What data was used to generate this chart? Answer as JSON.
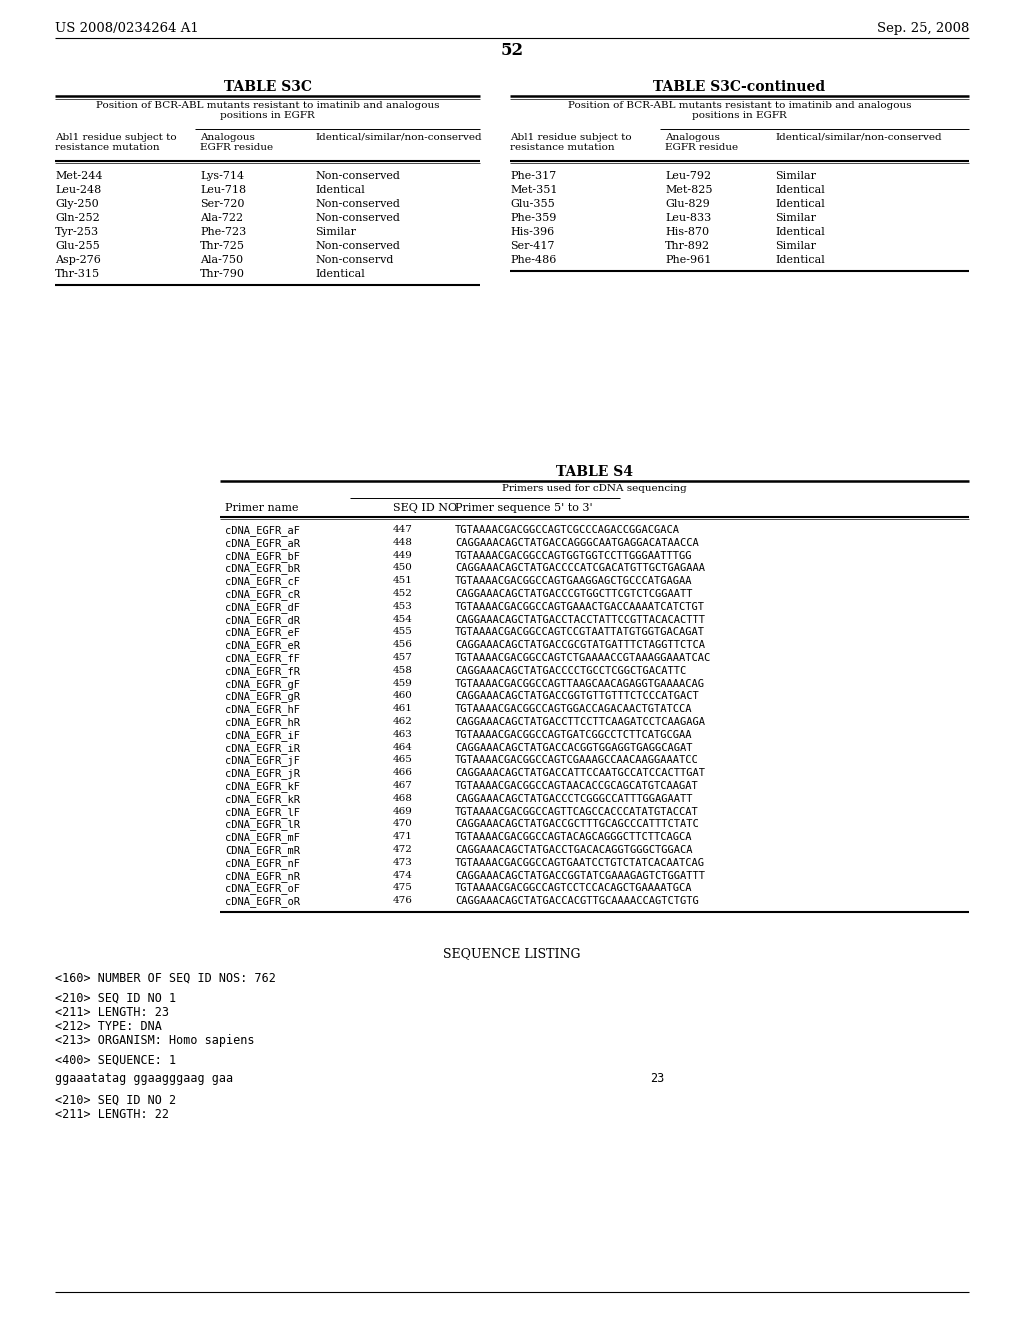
{
  "header_left": "US 2008/0234264 A1",
  "header_right": "Sep. 25, 2008",
  "page_number": "52",
  "table_s3c_title": "TABLE S3C",
  "table_s3c_subtitle": "Position of BCR-ABL mutants resistant to imatinib and analogous\npositions in EGFR",
  "table_s3c_col1_header": "Abl1 residue subject to\nresistance mutation",
  "table_s3c_col2_header": "Analogous\nEGFR residue",
  "table_s3c_col3_header": "Identical/similar/non-conserved",
  "table_s3c_data": [
    [
      "Met-244",
      "Lys-714",
      "Non-conserved"
    ],
    [
      "Leu-248",
      "Leu-718",
      "Identical"
    ],
    [
      "Gly-250",
      "Ser-720",
      "Non-conserved"
    ],
    [
      "Gln-252",
      "Ala-722",
      "Non-conserved"
    ],
    [
      "Tyr-253",
      "Phe-723",
      "Similar"
    ],
    [
      "Glu-255",
      "Thr-725",
      "Non-conserved"
    ],
    [
      "Asp-276",
      "Ala-750",
      "Non-conservd"
    ],
    [
      "Thr-315",
      "Thr-790",
      "Identical"
    ]
  ],
  "table_s3c_cont_title": "TABLE S3C-continued",
  "table_s3c_cont_subtitle": "Position of BCR-ABL mutants resistant to imatinib and analogous\npositions in EGFR",
  "table_s3c_cont_col1_header": "Abl1 residue subject to\nresistance mutation",
  "table_s3c_cont_col2_header": "Analogous\nEGFR residue",
  "table_s3c_cont_col3_header": "Identical/similar/non-conserved",
  "table_s3c_cont_data": [
    [
      "Phe-317",
      "Leu-792",
      "Similar"
    ],
    [
      "Met-351",
      "Met-825",
      "Identical"
    ],
    [
      "Glu-355",
      "Glu-829",
      "Identical"
    ],
    [
      "Phe-359",
      "Leu-833",
      "Similar"
    ],
    [
      "His-396",
      "His-870",
      "Identical"
    ],
    [
      "Ser-417",
      "Thr-892",
      "Similar"
    ],
    [
      "Phe-486",
      "Phe-961",
      "Identical"
    ]
  ],
  "table_s4_title": "TABLE S4",
  "table_s4_subtitle": "Primers used for cDNA sequencing",
  "table_s4_col1_header": "Primer name",
  "table_s4_col2_header": "SEQ ID NO",
  "table_s4_col3_header": "Primer sequence 5' to 3'",
  "table_s4_data": [
    [
      "cDNA_EGFR_aF",
      "447",
      "TGTAAAACGACGGCCAGTCGCCCAGACCGGACGACA"
    ],
    [
      "cDNA_EGFR_aR",
      "448",
      "CAGGAAACAGCTATGACCAGGGCAATGAGGACATAACCA"
    ],
    [
      "cDNA_EGFR_bF",
      "449",
      "TGTAAAACGACGGCCAGTGGTGGTCCTTGGGAATTTGG"
    ],
    [
      "cDNA_EGFR_bR",
      "450",
      "CAGGAAACAGCTATGACCCCATCGACATGTTGCTGAGAAA"
    ],
    [
      "cDNA_EGFR_cF",
      "451",
      "TGTAAAACGACGGCCAGTGAAGGAGCTGCCCATGAGAA"
    ],
    [
      "cDNA_EGFR_cR",
      "452",
      "CAGGAAACAGCTATGACCCGTGGCTTCGTCTCGGAATT"
    ],
    [
      "cDNA_EGFR_dF",
      "453",
      "TGTAAAACGACGGCCAGTGAAACTGACCAAAATCATCTGT"
    ],
    [
      "cDNA_EGFR_dR",
      "454",
      "CAGGAAACAGCTATGACCTACCTATTCCGTTACACACTTT"
    ],
    [
      "cDNA_EGFR_eF",
      "455",
      "TGTAAAACGACGGCCAGTCCGTAATTATGTGGTGACAGAT"
    ],
    [
      "cDNA_EGFR_eR",
      "456",
      "CAGGAAACAGCTATGACCGCGTATGATTTCTAGGTTCTCA"
    ],
    [
      "cDNA_EGFR_fF",
      "457",
      "TGTAAAACGACGGCCAGTCTGAAAACCGTAAAGGAAATCAC"
    ],
    [
      "cDNA_EGFR_fR",
      "458",
      "CAGGAAACAGCTATGACCCCTGCCTCGGCTGACATTC"
    ],
    [
      "cDNA_EGFR_gF",
      "459",
      "TGTAAAACGACGGCCAGTTAAGCAACAGAGGTGAAAACAG"
    ],
    [
      "cDNA_EGFR_gR",
      "460",
      "CAGGAAACAGCTATGACCGGTGTTGTTTCTCCCATGACT"
    ],
    [
      "cDNA_EGFR_hF",
      "461",
      "TGTAAAACGACGGCCAGTGGACCAGACAACTGTATCCA"
    ],
    [
      "cDNA_EGFR_hR",
      "462",
      "CAGGAAACAGCTATGACCTTCCTTCAAGATCCTCAAGAGA"
    ],
    [
      "cDNA_EGFR_iF",
      "463",
      "TGTAAAACGACGGCCAGTGATCGGCCTCTTCATGCGAA"
    ],
    [
      "cDNA_EGFR_iR",
      "464",
      "CAGGAAACAGCTATGACCACGGTGGAGGTGAGGCAGAT"
    ],
    [
      "cDNA_EGFR_jF",
      "465",
      "TGTAAAACGACGGCCAGTCGAAAGCCAACAAGGAAATCC"
    ],
    [
      "cDNA_EGFR_jR",
      "466",
      "CAGGAAACAGCTATGACCATTCCAATGCCATCCACTTGAT"
    ],
    [
      "cDNA_EGFR_kF",
      "467",
      "TGTAAAACGACGGCCAGTAACACCGCAGCATGTCAAGAT"
    ],
    [
      "cDNA_EGFR_kR",
      "468",
      "CAGGAAACAGCTATGACCCTCGGGCCATTTGGAGAATT"
    ],
    [
      "cDNA_EGFR_lF",
      "469",
      "TGTAAAACGACGGCCAGTTCAGCCACCCATATGTACCAT"
    ],
    [
      "cDNA_EGFR_lR",
      "470",
      "CAGGAAACAGCTATGACCGCTTTGCAGCCCATTTCTATC"
    ],
    [
      "cDNA_EGFR_mF",
      "471",
      "TGTAAAACGACGGCCAGTACAGCAGGGCTTCTTCAGCA"
    ],
    [
      "CDNA_EGFR_mR",
      "472",
      "CAGGAAACAGCTATGACCTGACACAGGTGGGCTGGACA"
    ],
    [
      "cDNA_EGFR_nF",
      "473",
      "TGTAAAACGACGGCCAGTGAATCCTGTCTATCACAATCAG"
    ],
    [
      "cDNA_EGFR_nR",
      "474",
      "CAGGAAACAGCTATGACCGGTATCGAAAGAGTCTGGATTT"
    ],
    [
      "cDNA_EGFR_oF",
      "475",
      "TGTAAAACGACGGCCAGTCCTCCACAGCTGAAAATGCA"
    ],
    [
      "cDNA_EGFR_oR",
      "476",
      "CAGGAAACAGCTATGACCACGTTGCAAAACCAGTCTGTG"
    ]
  ],
  "seq_listing_title": "SEQUENCE LISTING",
  "seq_160": "<160> NUMBER OF SEQ ID NOS: 762",
  "seq_210_1": "<210> SEQ ID NO 1",
  "seq_211_1": "<211> LENGTH: 23",
  "seq_212_1": "<212> TYPE: DNA",
  "seq_213_1": "<213> ORGANISM: Homo sapiens",
  "seq_400_1": "<400> SEQUENCE: 1",
  "seq_1_data": "ggaaatatag ggaagggaag gaa",
  "seq_1_num": "23",
  "seq_210_2": "<210> SEQ ID NO 2",
  "seq_211_2": "<211> LENGTH: 22"
}
